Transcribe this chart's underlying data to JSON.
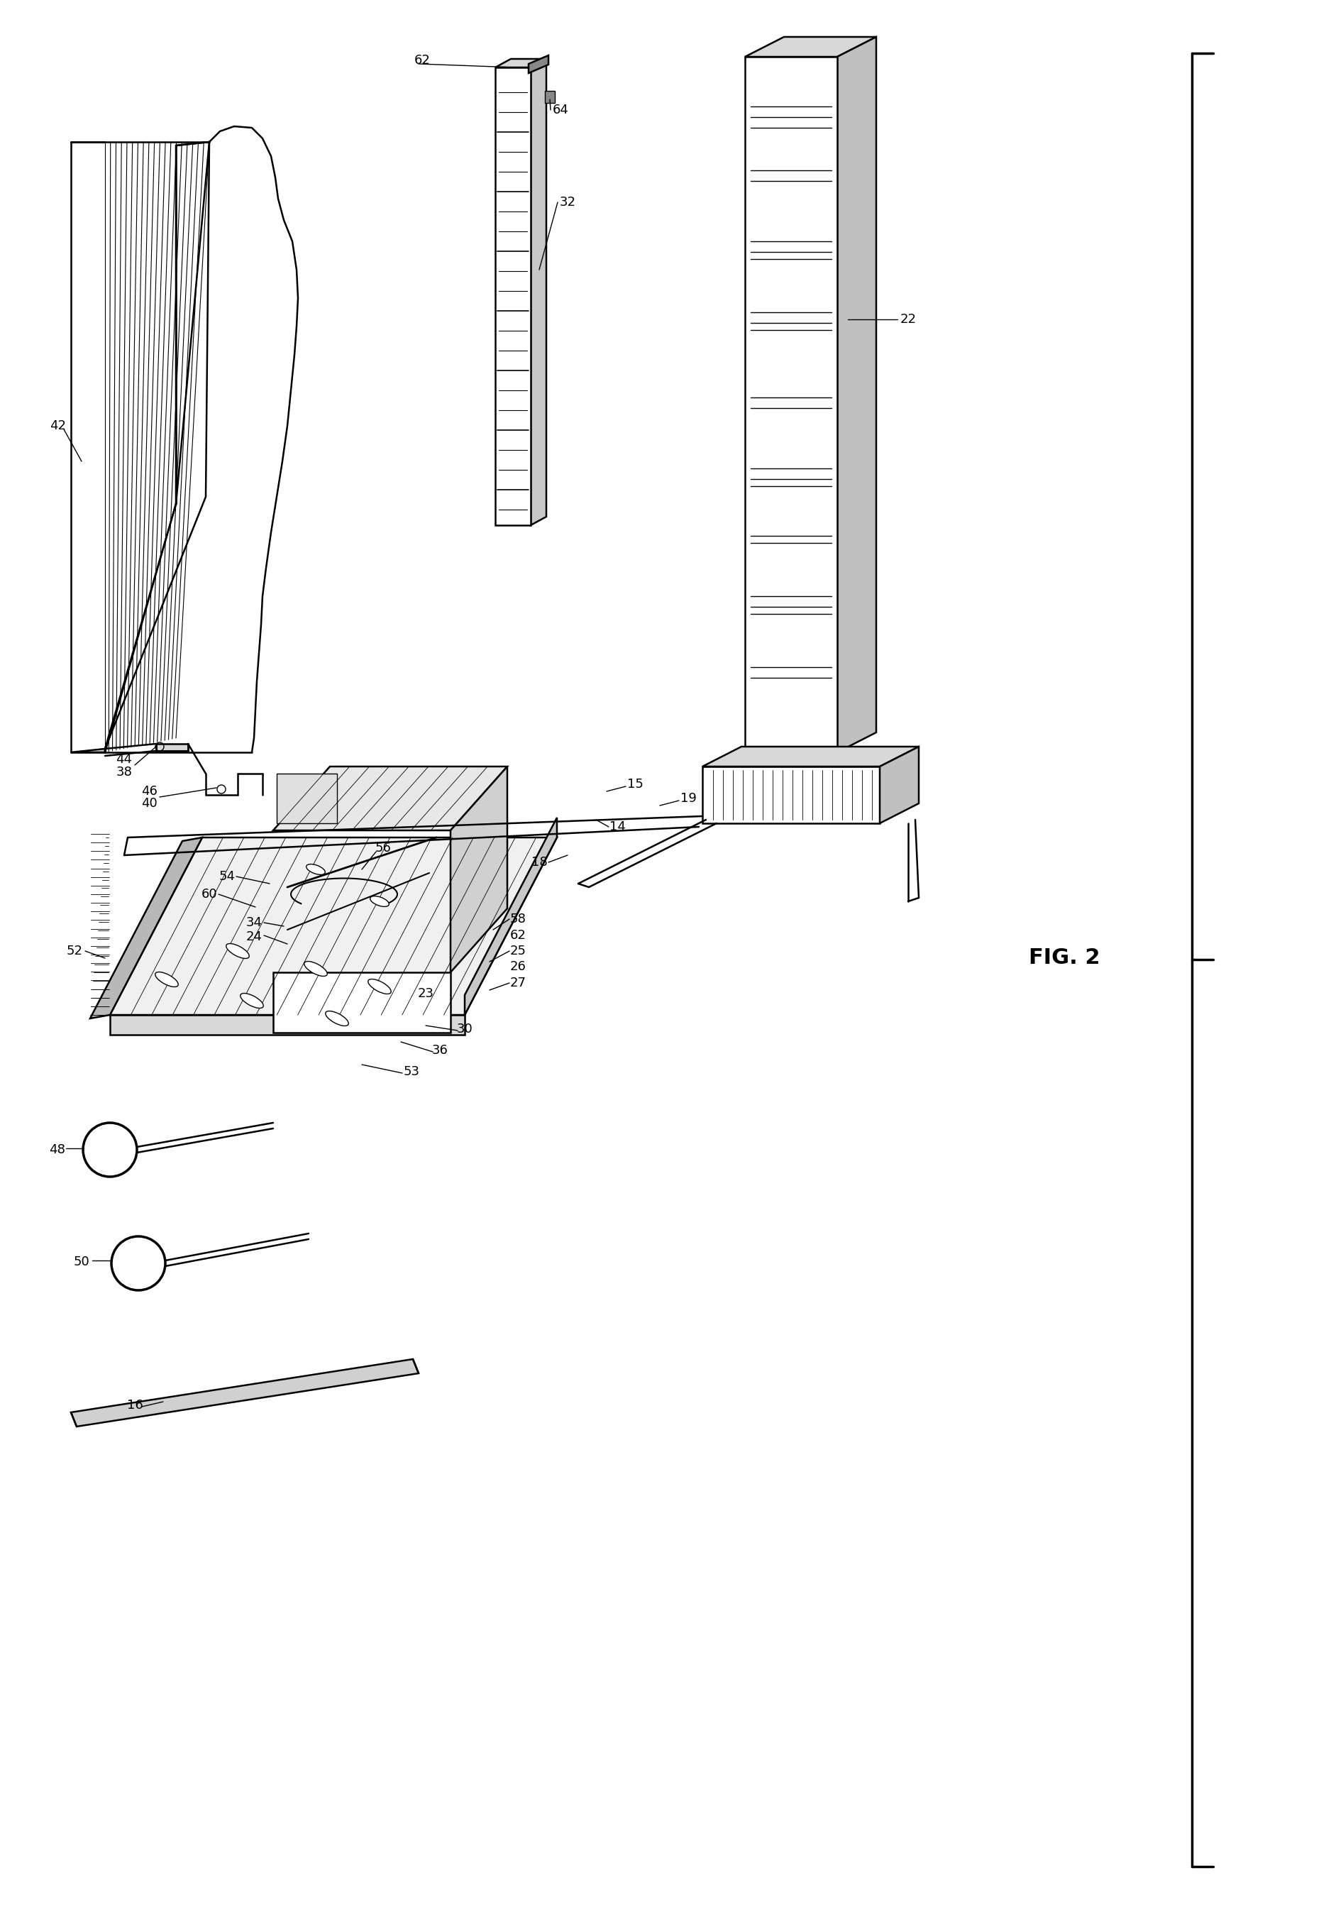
{
  "bg_color": "#ffffff",
  "fig_width": 18.76,
  "fig_height": 26.94,
  "fig2_label": "FIG. 2",
  "label_fs": 13,
  "title_fs": 18
}
